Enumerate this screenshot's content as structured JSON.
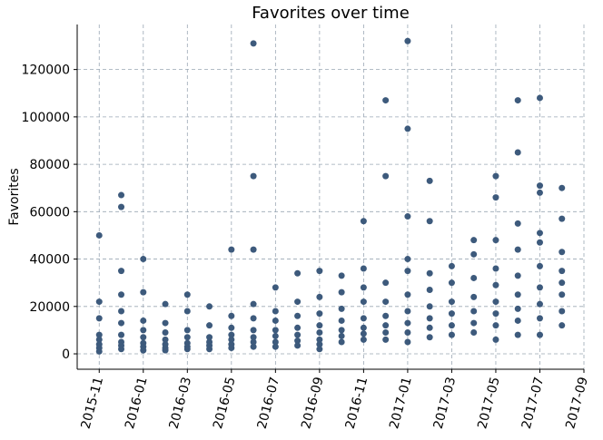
{
  "chart_data": {
    "type": "scatter",
    "title": "Favorites over time",
    "ylabel": "Favorites",
    "color": "#3d5a7c",
    "grid": true,
    "xlim": [
      "2015-10",
      "2017-09"
    ],
    "xticks": [
      "2015-11",
      "2016-01",
      "2016-03",
      "2016-05",
      "2016-07",
      "2016-09",
      "2016-11",
      "2017-01",
      "2017-03",
      "2017-05",
      "2017-07",
      "2017-09"
    ],
    "ylim": [
      -6500,
      139000
    ],
    "yticks": [
      0,
      20000,
      40000,
      60000,
      80000,
      100000,
      120000
    ],
    "x": [
      "2015-11",
      "2015-11",
      "2015-11",
      "2015-11",
      "2015-11",
      "2015-11",
      "2015-11",
      "2015-11",
      "2015-12",
      "2015-12",
      "2015-12",
      "2015-12",
      "2015-12",
      "2015-12",
      "2015-12",
      "2015-12",
      "2015-12",
      "2015-12",
      "2016-01",
      "2016-01",
      "2016-01",
      "2016-01",
      "2016-01",
      "2016-01",
      "2016-01",
      "2016-01",
      "2016-02",
      "2016-02",
      "2016-02",
      "2016-02",
      "2016-02",
      "2016-02",
      "2016-02",
      "2016-03",
      "2016-03",
      "2016-03",
      "2016-03",
      "2016-03",
      "2016-03",
      "2016-03",
      "2016-04",
      "2016-04",
      "2016-04",
      "2016-04",
      "2016-04",
      "2016-04",
      "2016-05",
      "2016-05",
      "2016-05",
      "2016-05",
      "2016-05",
      "2016-05",
      "2016-05",
      "2016-06",
      "2016-06",
      "2016-06",
      "2016-06",
      "2016-06",
      "2016-06",
      "2016-06",
      "2016-06",
      "2016-06",
      "2016-07",
      "2016-07",
      "2016-07",
      "2016-07",
      "2016-07",
      "2016-07",
      "2016-07",
      "2016-08",
      "2016-08",
      "2016-08",
      "2016-08",
      "2016-08",
      "2016-08",
      "2016-08",
      "2016-09",
      "2016-09",
      "2016-09",
      "2016-09",
      "2016-09",
      "2016-09",
      "2016-09",
      "2016-09",
      "2016-10",
      "2016-10",
      "2016-10",
      "2016-10",
      "2016-10",
      "2016-10",
      "2016-10",
      "2016-11",
      "2016-11",
      "2016-11",
      "2016-11",
      "2016-11",
      "2016-11",
      "2016-11",
      "2016-11",
      "2016-12",
      "2016-12",
      "2016-12",
      "2016-12",
      "2016-12",
      "2016-12",
      "2016-12",
      "2016-12",
      "2017-01",
      "2017-01",
      "2017-01",
      "2017-01",
      "2017-01",
      "2017-01",
      "2017-01",
      "2017-01",
      "2017-01",
      "2017-01",
      "2017-02",
      "2017-02",
      "2017-02",
      "2017-02",
      "2017-02",
      "2017-02",
      "2017-02",
      "2017-02",
      "2017-03",
      "2017-03",
      "2017-03",
      "2017-03",
      "2017-03",
      "2017-03",
      "2017-04",
      "2017-04",
      "2017-04",
      "2017-04",
      "2017-04",
      "2017-04",
      "2017-04",
      "2017-05",
      "2017-05",
      "2017-05",
      "2017-05",
      "2017-05",
      "2017-05",
      "2017-05",
      "2017-05",
      "2017-05",
      "2017-06",
      "2017-06",
      "2017-06",
      "2017-06",
      "2017-06",
      "2017-06",
      "2017-06",
      "2017-06",
      "2017-06",
      "2017-07",
      "2017-07",
      "2017-07",
      "2017-07",
      "2017-07",
      "2017-07",
      "2017-07",
      "2017-07",
      "2017-07",
      "2017-07",
      "2017-08",
      "2017-08",
      "2017-08",
      "2017-08",
      "2017-08",
      "2017-08",
      "2017-08",
      "2017-08"
    ],
    "values": [
      1000,
      2500,
      4000,
      6000,
      8000,
      15000,
      22000,
      50000,
      2000,
      3500,
      5000,
      8000,
      13000,
      18000,
      25000,
      35000,
      67000,
      62000,
      1500,
      3000,
      4500,
      7000,
      10000,
      14000,
      26000,
      40000,
      1500,
      2500,
      4000,
      6000,
      9000,
      13000,
      21000,
      2000,
      3000,
      4500,
      7000,
      10000,
      18000,
      25000,
      2000,
      3500,
      5000,
      7000,
      12000,
      20000,
      2500,
      4000,
      6000,
      8000,
      11000,
      16000,
      44000,
      3000,
      5000,
      7000,
      10000,
      15000,
      21000,
      44000,
      75000,
      131000,
      3000,
      5000,
      7500,
      10000,
      14000,
      18000,
      28000,
      3500,
      5500,
      8000,
      11000,
      16000,
      22000,
      34000,
      4000,
      6000,
      9000,
      12000,
      17000,
      24000,
      35000,
      2000,
      5000,
      7500,
      10000,
      14000,
      19000,
      26000,
      33000,
      6000,
      8500,
      11000,
      15000,
      22000,
      28000,
      36000,
      56000,
      6000,
      9000,
      12000,
      16000,
      22000,
      30000,
      75000,
      107000,
      5000,
      9000,
      13000,
      18000,
      25000,
      35000,
      40000,
      58000,
      95000,
      132000,
      7000,
      11000,
      15000,
      20000,
      27000,
      34000,
      56000,
      73000,
      8000,
      12000,
      17000,
      22000,
      30000,
      37000,
      9000,
      13000,
      18000,
      24000,
      32000,
      42000,
      48000,
      6000,
      12000,
      17000,
      22000,
      29000,
      36000,
      48000,
      66000,
      75000,
      8000,
      14000,
      19000,
      25000,
      33000,
      44000,
      55000,
      85000,
      107000,
      8000,
      15000,
      21000,
      28000,
      37000,
      47000,
      51000,
      68000,
      71000,
      108000,
      12000,
      18000,
      25000,
      30000,
      35000,
      43000,
      57000,
      70000
    ]
  }
}
